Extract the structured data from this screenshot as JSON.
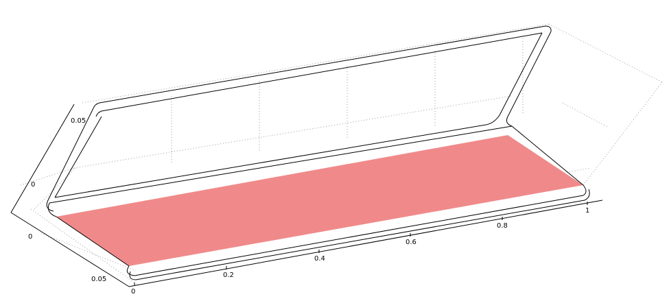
{
  "colors": {
    "background": "#ffffff",
    "highlight_face": "#f08a8a",
    "edges": "#000000",
    "grid": "#9a9a9a"
  },
  "axes": {
    "x_ticks": [
      "0",
      "0.2",
      "0.4",
      "0.6",
      "0.8",
      "1"
    ],
    "y_ticks": [
      "0",
      "0.05"
    ],
    "z_ticks": [
      "0",
      "0.05"
    ]
  },
  "view": {
    "type": "3d-geometry-wireframe",
    "grid": true,
    "highlighted_face": "bottom"
  }
}
